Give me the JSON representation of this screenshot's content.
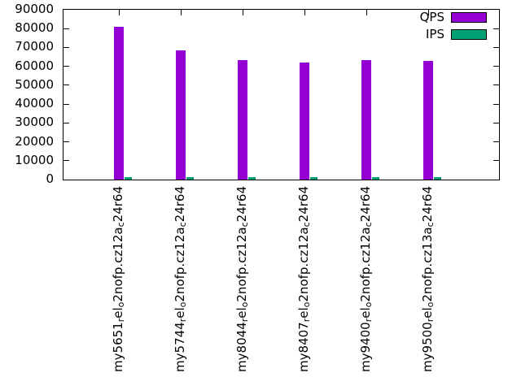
{
  "chart_data": {
    "type": "bar",
    "title": "",
    "xlabel": "",
    "ylabel": "",
    "categories": [
      "my5651_{r}el_{o}2nofp.cz12a_{c}24r64",
      "my5744_{r}el_{o}2nofp.cz12a_{c}24r64",
      "my8044_{r}el_{o}2nofp.cz12a_{c}24r64",
      "my8407_{r}el_{o}2nofp.cz12a_{c}24r64",
      "my9400_{r}el_{o}2nofp.cz12a_{c}24r64",
      "my9500_{r}el_{o}2nofp.cz13a_{c}24r64"
    ],
    "series": [
      {
        "name": "QPS",
        "color": "#9400d3",
        "values": [
          81000,
          68600,
          63400,
          61900,
          63400,
          62900
        ]
      },
      {
        "name": "IPS",
        "color": "#009e73",
        "values": [
          1100,
          1100,
          1100,
          1100,
          1100,
          1100
        ]
      }
    ],
    "ylim": [
      0,
      90000
    ],
    "yticks": [
      0,
      10000,
      20000,
      30000,
      40000,
      50000,
      60000,
      70000,
      80000,
      90000
    ],
    "grid": false,
    "legend_position": "top-right",
    "axis_color": "#000000",
    "background_color": "#ffffff"
  }
}
